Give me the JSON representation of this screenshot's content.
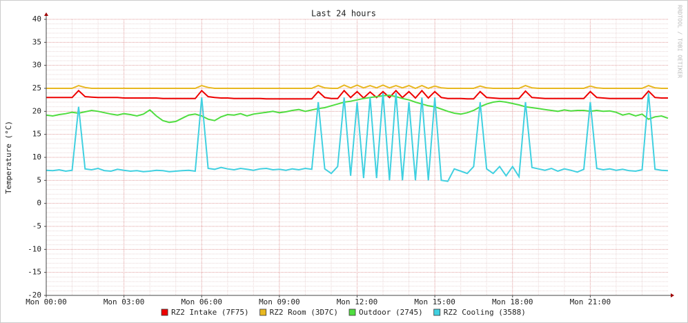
{
  "chart_data": {
    "type": "line",
    "title": "Last 24 hours",
    "y_label": "Temperature (°C)",
    "watermark": "RRDTOOL / TOBI OETIKER",
    "grid": true,
    "legend": "bottom",
    "xlim": [
      0,
      24
    ],
    "xticks": [
      {
        "value": 0,
        "label": "Mon 00:00"
      },
      {
        "value": 3,
        "label": "Mon 03:00"
      },
      {
        "value": 6,
        "label": "Mon 06:00"
      },
      {
        "value": 9,
        "label": "Mon 09:00"
      },
      {
        "value": 12,
        "label": "Mon 12:00"
      },
      {
        "value": 15,
        "label": "Mon 15:00"
      },
      {
        "value": 18,
        "label": "Mon 18:00"
      },
      {
        "value": 21,
        "label": "Mon 21:00"
      }
    ],
    "ylim": [
      -20,
      40
    ],
    "yticks": [
      -20,
      -15,
      -10,
      -5,
      0,
      5,
      10,
      15,
      20,
      25,
      30,
      35,
      40
    ],
    "x": [
      0,
      0.25,
      0.5,
      0.75,
      1,
      1.25,
      1.5,
      1.75,
      2,
      2.25,
      2.5,
      2.75,
      3,
      3.25,
      3.5,
      3.75,
      4,
      4.25,
      4.5,
      4.75,
      5,
      5.25,
      5.5,
      5.75,
      6,
      6.25,
      6.5,
      6.75,
      7,
      7.25,
      7.5,
      7.75,
      8,
      8.25,
      8.5,
      8.75,
      9,
      9.25,
      9.5,
      9.75,
      10,
      10.25,
      10.5,
      10.75,
      11,
      11.25,
      11.5,
      11.75,
      12,
      12.25,
      12.5,
      12.75,
      13,
      13.25,
      13.5,
      13.75,
      14,
      14.25,
      14.5,
      14.75,
      15,
      15.25,
      15.5,
      15.75,
      16,
      16.25,
      16.5,
      16.75,
      17,
      17.25,
      17.5,
      17.75,
      18,
      18.25,
      18.5,
      18.75,
      19,
      19.25,
      19.5,
      19.75,
      20,
      20.25,
      20.5,
      20.75,
      21,
      21.25,
      21.5,
      21.75,
      22,
      22.25,
      22.5,
      22.75,
      23,
      23.25,
      23.5,
      23.75,
      24
    ],
    "series": [
      {
        "name": "RZ2 Intake (7F75)",
        "color": "#ee0000",
        "values": [
          23.0,
          23.0,
          23.0,
          23.0,
          23.0,
          24.5,
          23.2,
          23.1,
          23.0,
          23.0,
          23.0,
          23.0,
          22.9,
          22.9,
          22.9,
          22.9,
          22.9,
          22.9,
          22.8,
          22.8,
          22.8,
          22.8,
          22.8,
          22.8,
          24.5,
          23.2,
          23.0,
          22.9,
          22.9,
          22.8,
          22.8,
          22.8,
          22.8,
          22.8,
          22.7,
          22.7,
          22.7,
          22.7,
          22.7,
          22.7,
          22.7,
          22.7,
          24.3,
          23.0,
          22.8,
          22.8,
          24.5,
          23.0,
          24.3,
          22.9,
          24.2,
          23.0,
          24.3,
          23.0,
          24.5,
          23.0,
          24.3,
          22.9,
          24.5,
          22.9,
          24.3,
          23.0,
          22.8,
          22.8,
          22.8,
          22.7,
          22.7,
          24.3,
          23.0,
          22.9,
          22.8,
          22.8,
          22.8,
          22.8,
          24.4,
          23.0,
          22.9,
          22.8,
          22.8,
          22.8,
          22.8,
          22.8,
          22.8,
          22.8,
          24.3,
          23.0,
          22.9,
          22.8,
          22.8,
          22.8,
          22.8,
          22.8,
          22.8,
          24.4,
          23.0,
          22.9,
          22.9
        ]
      },
      {
        "name": "RZ2 Room (3D7C)",
        "color": "#e8b820",
        "values": [
          25.0,
          25.0,
          25.0,
          25.0,
          25.0,
          25.6,
          25.2,
          25.0,
          25.0,
          25.0,
          25.0,
          25.0,
          25.0,
          25.0,
          25.0,
          25.0,
          25.0,
          25.0,
          25.0,
          25.0,
          25.0,
          25.0,
          25.0,
          25.0,
          25.6,
          25.2,
          25.0,
          25.0,
          25.0,
          25.0,
          25.0,
          25.0,
          25.0,
          25.0,
          25.0,
          25.0,
          25.0,
          25.0,
          25.0,
          25.0,
          25.0,
          25.0,
          25.6,
          25.1,
          25.0,
          25.0,
          25.7,
          25.1,
          25.7,
          25.1,
          25.6,
          25.1,
          25.7,
          25.1,
          25.6,
          25.1,
          25.6,
          25.0,
          25.6,
          25.0,
          25.5,
          25.1,
          25.0,
          25.0,
          25.0,
          25.0,
          25.0,
          25.5,
          25.1,
          25.0,
          25.0,
          25.0,
          25.0,
          25.0,
          25.6,
          25.1,
          25.0,
          25.0,
          25.0,
          25.0,
          25.0,
          25.0,
          25.0,
          25.0,
          25.5,
          25.1,
          25.0,
          25.0,
          25.0,
          25.0,
          25.0,
          25.0,
          25.0,
          25.6,
          25.1,
          25.0,
          25.0
        ]
      },
      {
        "name": "Outdoor (2745)",
        "color": "#50dd40",
        "values": [
          19.2,
          19.0,
          19.3,
          19.5,
          19.8,
          19.6,
          19.9,
          20.2,
          20.0,
          19.7,
          19.4,
          19.2,
          19.5,
          19.3,
          19.0,
          19.4,
          20.3,
          19.0,
          18.0,
          17.6,
          17.8,
          18.5,
          19.2,
          19.4,
          19.0,
          18.3,
          18.0,
          18.8,
          19.3,
          19.2,
          19.5,
          19.0,
          19.4,
          19.6,
          19.8,
          20.0,
          19.7,
          19.9,
          20.2,
          20.4,
          20.0,
          20.3,
          20.6,
          20.8,
          21.2,
          21.6,
          22.0,
          22.2,
          22.5,
          22.8,
          23.0,
          23.2,
          23.4,
          23.5,
          23.2,
          22.8,
          22.5,
          22.0,
          21.6,
          21.2,
          21.0,
          20.5,
          20.0,
          19.6,
          19.4,
          19.7,
          20.2,
          21.0,
          21.6,
          22.0,
          22.2,
          22.0,
          21.7,
          21.4,
          21.0,
          20.8,
          20.6,
          20.4,
          20.2,
          20.0,
          20.3,
          20.1,
          20.2,
          20.2,
          20.0,
          20.2,
          20.0,
          20.1,
          19.8,
          19.2,
          19.5,
          19.0,
          19.4,
          18.3,
          18.8,
          19.0,
          18.5
        ]
      },
      {
        "name": "RZ2 Cooling (3588)",
        "color": "#40d0e0",
        "values": [
          7.2,
          7.1,
          7.3,
          7.0,
          7.2,
          21,
          7.5,
          7.3,
          7.6,
          7.1,
          7.0,
          7.4,
          7.2,
          7.0,
          7.1,
          6.9,
          7.0,
          7.2,
          7.1,
          6.9,
          7.0,
          7.1,
          7.2,
          7.0,
          23,
          7.6,
          7.4,
          7.8,
          7.5,
          7.3,
          7.6,
          7.4,
          7.2,
          7.5,
          7.6,
          7.3,
          7.4,
          7.2,
          7.5,
          7.3,
          7.6,
          7.4,
          22,
          7.5,
          6.5,
          8,
          23,
          6,
          22,
          5.5,
          23,
          5.5,
          24,
          5,
          24,
          5,
          22,
          5,
          23,
          5,
          23,
          5,
          4.8,
          7.5,
          7,
          6.5,
          8,
          22,
          7.5,
          6.5,
          8,
          6,
          8,
          5.8,
          22,
          7.8,
          7.5,
          7.2,
          7.6,
          7,
          7.5,
          7.2,
          6.8,
          7.4,
          22,
          7.6,
          7.3,
          7.5,
          7.2,
          7.4,
          7.1,
          7.0,
          7.3,
          24,
          7.4,
          7.2,
          7.1
        ]
      }
    ]
  }
}
